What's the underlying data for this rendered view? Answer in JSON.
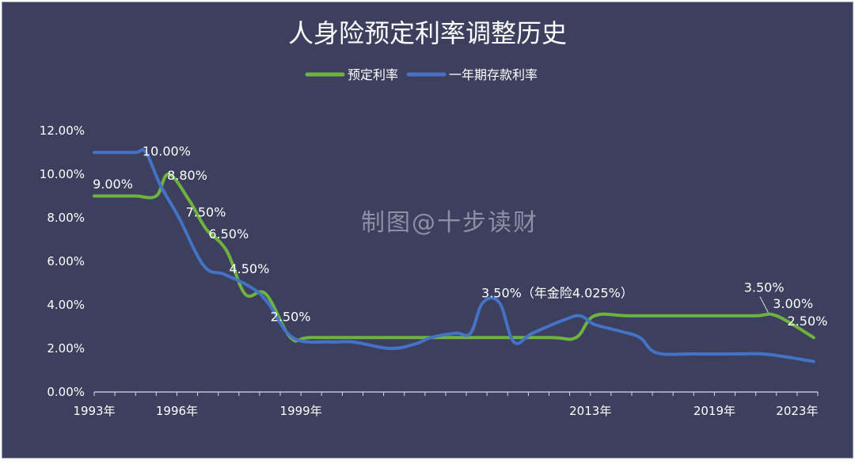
{
  "chart_data": {
    "type": "line",
    "title": "人身险预定利率调整历史",
    "watermark": "制图@十步读财",
    "xlabel": "",
    "ylabel": "",
    "ylim": [
      0,
      0.12
    ],
    "y_ticks": [
      {
        "value": 0.0,
        "label": "0.00%"
      },
      {
        "value": 0.02,
        "label": "2.00%"
      },
      {
        "value": 0.04,
        "label": "4.00%"
      },
      {
        "value": 0.06,
        "label": "6.00%"
      },
      {
        "value": 0.08,
        "label": "8.00%"
      },
      {
        "value": 0.1,
        "label": "10.00%"
      },
      {
        "value": 0.12,
        "label": "12.00%"
      }
    ],
    "x_index_range": [
      0,
      35
    ],
    "x_ticks": [
      {
        "index": 0,
        "label": "1993年"
      },
      {
        "index": 4,
        "label": "1996年"
      },
      {
        "index": 10,
        "label": "1999年"
      },
      {
        "index": 24,
        "label": "2013年"
      },
      {
        "index": 30,
        "label": "2019年"
      },
      {
        "index": 34,
        "label": "2023年"
      }
    ],
    "grid": false,
    "legend_position": "top",
    "series": [
      {
        "name": "预定利率",
        "color": "#6fb33f",
        "points": [
          [
            0,
            0.09
          ],
          [
            1,
            0.09
          ],
          [
            2,
            0.09
          ],
          [
            3,
            0.09
          ],
          [
            3.6,
            0.1
          ],
          [
            4.6,
            0.088
          ],
          [
            5.4,
            0.075
          ],
          [
            6.4,
            0.065
          ],
          [
            7.3,
            0.045
          ],
          [
            8.3,
            0.045
          ],
          [
            9.5,
            0.025
          ],
          [
            10.5,
            0.025
          ],
          [
            14,
            0.025
          ],
          [
            18,
            0.025
          ],
          [
            22,
            0.025
          ],
          [
            23.3,
            0.025
          ],
          [
            24.2,
            0.035
          ],
          [
            26,
            0.035
          ],
          [
            30,
            0.035
          ],
          [
            32,
            0.035
          ],
          [
            33,
            0.035
          ],
          [
            34.8,
            0.025
          ]
        ]
      },
      {
        "name": "一年期存款利率",
        "color": "#4472c4",
        "points": [
          [
            0,
            0.11
          ],
          [
            1,
            0.11
          ],
          [
            2,
            0.11
          ],
          [
            2.5,
            0.11
          ],
          [
            3.2,
            0.095
          ],
          [
            4.1,
            0.08
          ],
          [
            5.3,
            0.058
          ],
          [
            6.3,
            0.054
          ],
          [
            7.6,
            0.048
          ],
          [
            8.4,
            0.041
          ],
          [
            9.6,
            0.025
          ],
          [
            11.4,
            0.023
          ],
          [
            12.5,
            0.023
          ],
          [
            14.3,
            0.02
          ],
          [
            15.5,
            0.022
          ],
          [
            16.3,
            0.025
          ],
          [
            17.5,
            0.027
          ],
          [
            18.2,
            0.027
          ],
          [
            18.8,
            0.041
          ],
          [
            19.6,
            0.041
          ],
          [
            20.3,
            0.023
          ],
          [
            21.2,
            0.027
          ],
          [
            22.7,
            0.033
          ],
          [
            23.5,
            0.035
          ],
          [
            24.2,
            0.031
          ],
          [
            25.4,
            0.028
          ],
          [
            26.4,
            0.025
          ],
          [
            27.2,
            0.018
          ],
          [
            29,
            0.0175
          ],
          [
            31,
            0.0175
          ],
          [
            32.3,
            0.0175
          ],
          [
            33.4,
            0.0162
          ],
          [
            34.8,
            0.014
          ]
        ]
      }
    ],
    "annotations": [
      {
        "text": "9.00%",
        "x": 0.9,
        "y": 0.0935
      },
      {
        "text": "10.00%",
        "x": 3.5,
        "y": 0.1085
      },
      {
        "text": "8.80%",
        "x": 4.5,
        "y": 0.0975
      },
      {
        "text": "7.50%",
        "x": 5.4,
        "y": 0.0805
      },
      {
        "text": "6.50%",
        "x": 6.5,
        "y": 0.0705
      },
      {
        "text": "4.50%",
        "x": 7.5,
        "y": 0.0545
      },
      {
        "text": "2.50%",
        "x": 9.5,
        "y": 0.0325
      },
      {
        "text": "3.50%（年金险4.025%）",
        "x": 22.4,
        "y": 0.0435
      },
      {
        "text": "3.50%",
        "x": 32.4,
        "y": 0.046
      },
      {
        "text": "3.00%",
        "x": 33.8,
        "y": 0.0385
      },
      {
        "text": "2.50%",
        "x": 34.5,
        "y": 0.0305
      }
    ]
  }
}
